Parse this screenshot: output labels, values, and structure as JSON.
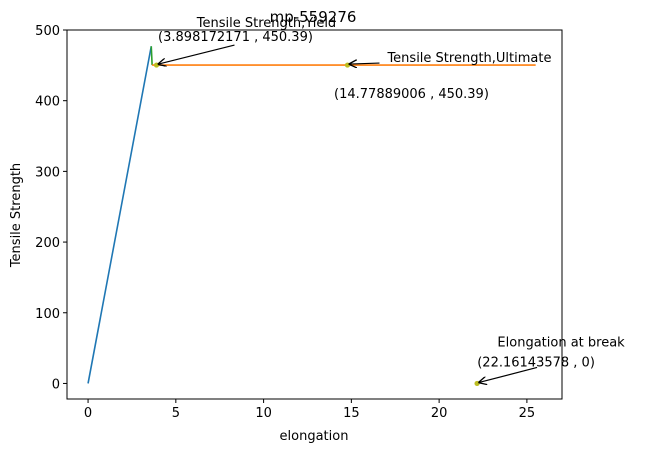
{
  "chart_data": {
    "type": "line",
    "title": "mp-559276",
    "xlabel": "elongation",
    "ylabel": "Tensile Strength",
    "xlim": [
      -1.2,
      27
    ],
    "ylim": [
      -22,
      500
    ],
    "x_ticks": [
      0,
      5,
      10,
      15,
      20,
      25
    ],
    "y_ticks": [
      0,
      100,
      200,
      300,
      400,
      500
    ],
    "grid": false,
    "series": [
      {
        "color": "#1f77b4",
        "points": [
          [
            0,
            0
          ],
          [
            3.6,
            477
          ]
        ]
      },
      {
        "color": "#2ca02c",
        "points": [
          [
            3.6,
            477
          ],
          [
            3.65,
            450.39
          ]
        ]
      },
      {
        "color": "#ff7f0e",
        "points": [
          [
            3.65,
            450.39
          ],
          [
            25.5,
            450.39
          ]
        ]
      }
    ],
    "markers": [
      {
        "name": "yield-point",
        "x": 3.898172171,
        "y": 450.39,
        "color": "#bcbd22"
      },
      {
        "name": "ultimate-point",
        "x": 14.77889006,
        "y": 450.39,
        "color": "#bcbd22"
      },
      {
        "name": "break-point",
        "x": 22.16143578,
        "y": 0,
        "color": "#bcbd22"
      }
    ],
    "annotations": [
      {
        "name": "yield",
        "title": "Tensile Strength,Yield",
        "coords": "(3.898172171 , 450.39)",
        "x": 3.898172171,
        "y": 450.39
      },
      {
        "name": "ultimate",
        "title": "Tensile Strength,Ultimate",
        "coords": "(14.77889006 , 450.39)",
        "x": 14.77889006,
        "y": 450.39
      },
      {
        "name": "break",
        "title": "Elongation at break",
        "coords": "(22.16143578 , 0)",
        "x": 22.16143578,
        "y": 0
      }
    ]
  }
}
